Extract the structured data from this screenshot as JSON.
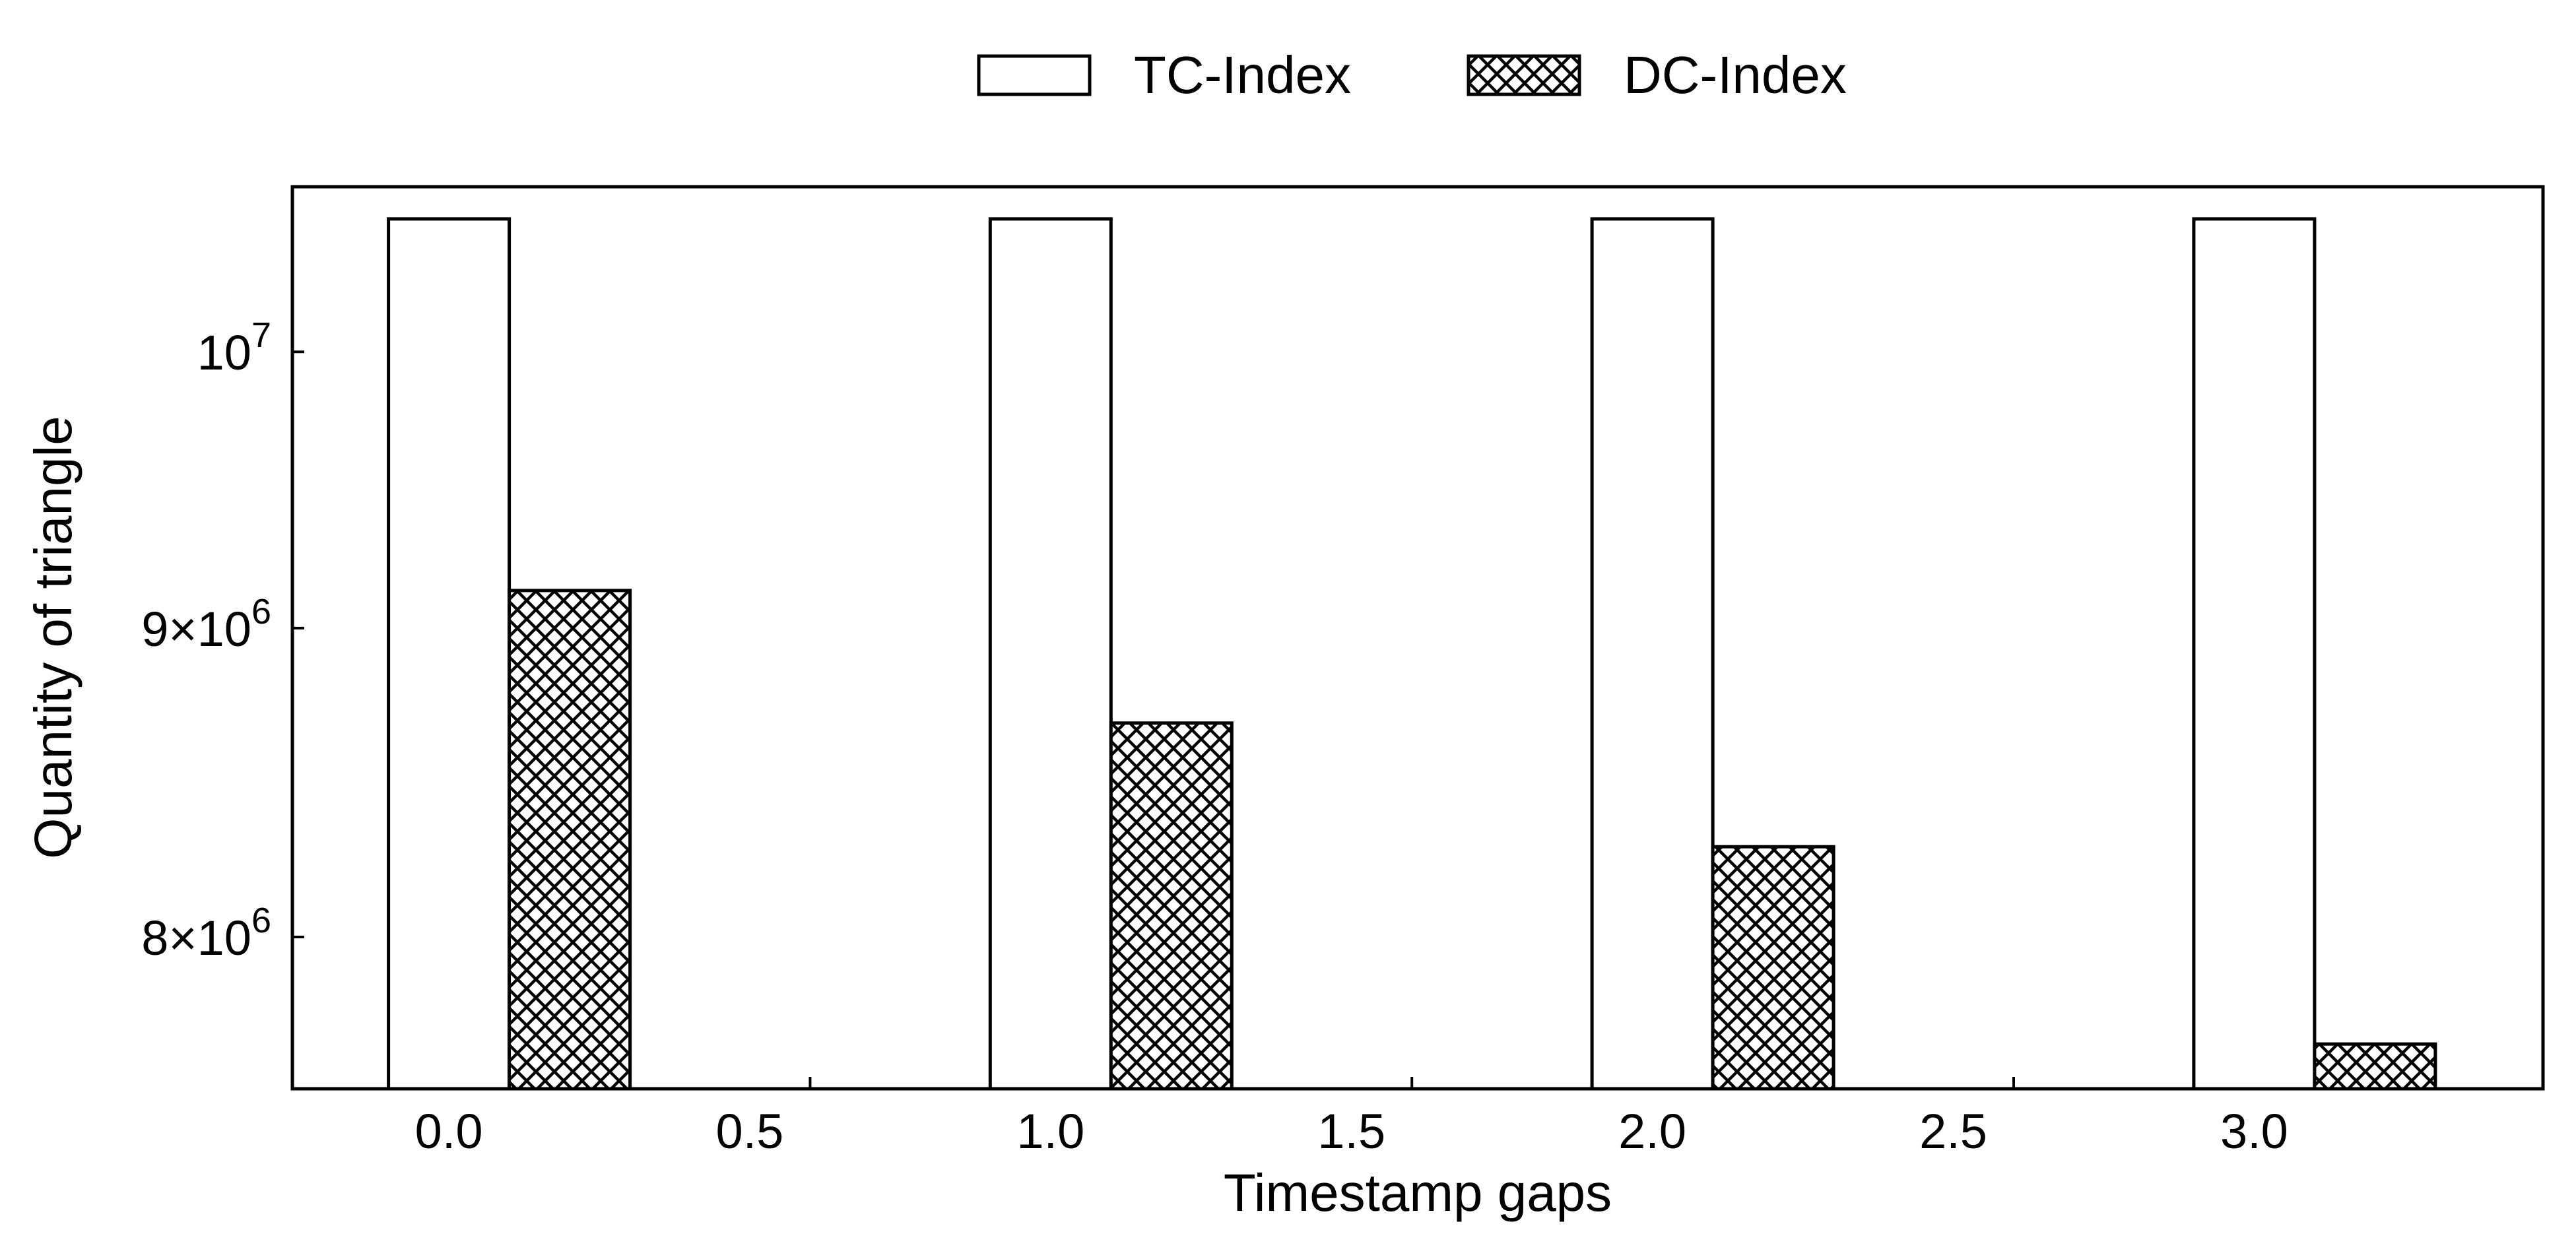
{
  "chart_data": {
    "type": "bar",
    "xlabel": "Timestamp gaps",
    "ylabel": "Quantity of triangle",
    "y_scale": "log",
    "ylim": [
      7550000,
      10650000
    ],
    "xlim": [
      -0.26,
      3.48
    ],
    "x_ticks": [
      {
        "value": 0.0,
        "label": "0.0"
      },
      {
        "value": 0.5,
        "label": "0.5"
      },
      {
        "value": 1.0,
        "label": "1.0"
      },
      {
        "value": 1.5,
        "label": "1.5"
      },
      {
        "value": 2.0,
        "label": "2.0"
      },
      {
        "value": 2.5,
        "label": "2.5"
      },
      {
        "value": 3.0,
        "label": "3.0"
      }
    ],
    "y_ticks": [
      {
        "value": 10000000,
        "base": "10",
        "exp": "7"
      },
      {
        "value": 9000000,
        "base": "9×10",
        "exp": "6"
      },
      {
        "value": 8000000,
        "base": "8×10",
        "exp": "6"
      }
    ],
    "legend_position": "top-center, outside plot",
    "grid": false,
    "series": [
      {
        "name": "TC-Index",
        "style": "white-fill",
        "color": "#000000",
        "x": [
          0.0,
          1.0,
          2.0,
          3.0
        ],
        "values": [
          10520000,
          10520000,
          10520000,
          10520000
        ]
      },
      {
        "name": "DC-Index",
        "style": "crosshatch",
        "color": "#000000",
        "x": [
          0.0,
          1.0,
          2.0,
          3.0
        ],
        "values": [
          9130000,
          8680000,
          8280000,
          7680000
        ]
      }
    ]
  }
}
